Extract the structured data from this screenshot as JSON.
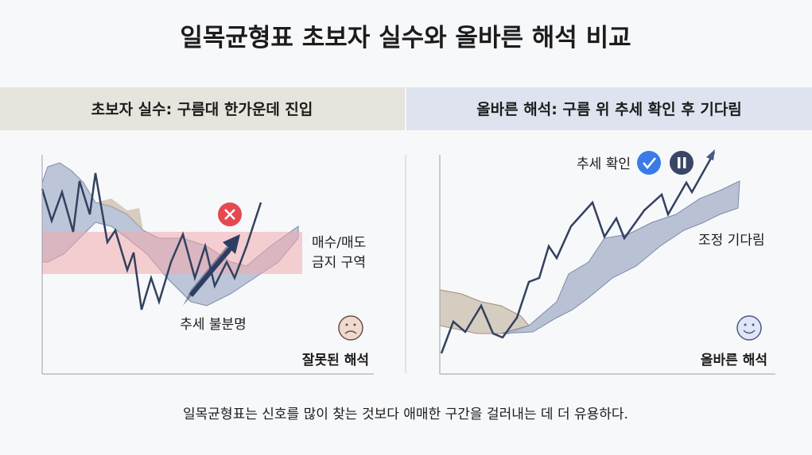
{
  "title": "일목균형표 초보자 실수와 올바른 해석 비교",
  "panels": [
    {
      "header": "초보자 실수: 구름대 한가운데 진입",
      "zone_label": [
        "매수/매도",
        "금지 구역"
      ],
      "trend_label": "추세 불분명",
      "verdict": "잘못된 해석"
    },
    {
      "header": "올바른 해석: 구름 위 추세 확인 후 기다림",
      "confirm_label": "추세 확인",
      "wait_label": "조정 기다림",
      "verdict": "올바른 해석"
    }
  ],
  "footer": "일목균형표는 신호를 많이 찾는 것보다 애매한 구간을 걸러내는 데 더 유용하다."
}
